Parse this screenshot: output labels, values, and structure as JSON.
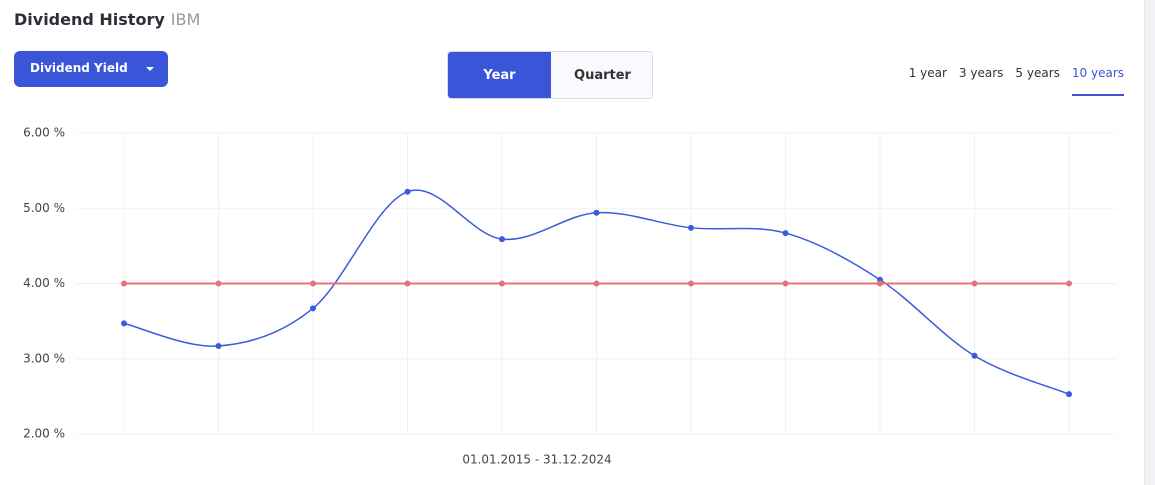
{
  "header": {
    "title": "Dividend History",
    "ticker": "IBM"
  },
  "controls": {
    "dropdown": "Dividend Yield",
    "toggle": [
      "Year",
      "Quarter"
    ],
    "toggle_active": 0,
    "periods": [
      "1 year",
      "3 years",
      "5 years",
      "10 years"
    ],
    "period_active": 3
  },
  "chart_data": {
    "type": "line",
    "x_label": "01.01.2015 - 31.12.2024",
    "categories": [
      null,
      null,
      null,
      null,
      null,
      null,
      null,
      null,
      null,
      null,
      null
    ],
    "series": [
      {
        "color": "#3b5bdb",
        "smooth": true,
        "values": [
          3.47,
          3.17,
          3.67,
          5.22,
          4.59,
          4.94,
          4.74,
          4.67,
          4.05,
          3.04,
          2.53
        ]
      },
      {
        "color": "#e8707c",
        "smooth": false,
        "values": [
          4,
          4,
          4,
          4,
          4,
          4,
          4,
          4,
          4,
          4,
          4
        ]
      }
    ],
    "ylim": [
      2,
      6
    ],
    "yticks": [
      {
        "value": 2,
        "label": "2.00 %"
      },
      {
        "value": 3,
        "label": "3.00 %"
      },
      {
        "value": 4,
        "label": "4.00 %"
      },
      {
        "value": 5,
        "label": "5.00 %"
      },
      {
        "value": 6,
        "label": "6.00 %"
      }
    ],
    "grid": true
  }
}
